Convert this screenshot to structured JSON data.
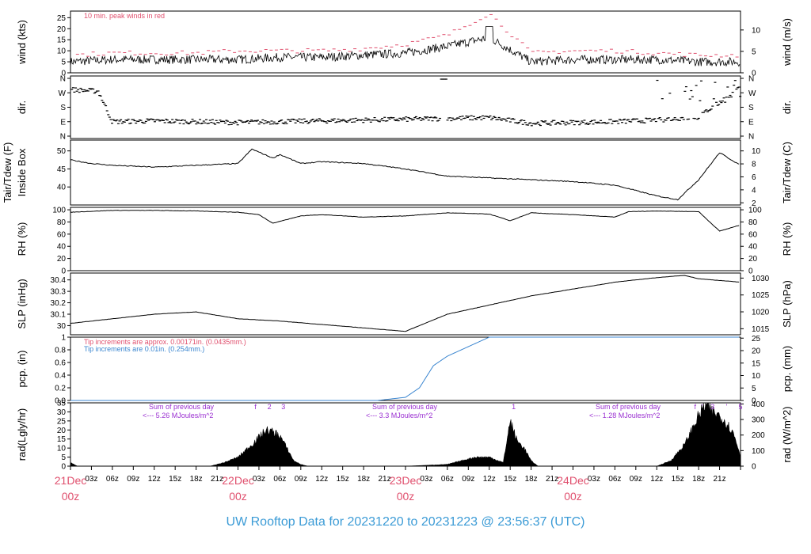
{
  "title": "UW Rooftop Data for 20231220  to  20231223 @ 23:56:37  (UTC)",
  "colors": {
    "red": "#e0506e",
    "blue": "#3b86d0",
    "purple": "#9a2fd1",
    "title": "#3b9bd6"
  },
  "x_axis": {
    "hour_ticks": [
      "03z",
      "06z",
      "09z",
      "12z",
      "15z",
      "18z",
      "21z"
    ],
    "day_labels": [
      {
        "date": "21Dec",
        "hour": "00z"
      },
      {
        "date": "22Dec",
        "hour": "00z"
      },
      {
        "date": "23Dec",
        "hour": "00z"
      },
      {
        "date": "24Dec",
        "hour": "00z"
      }
    ]
  },
  "chart_data": [
    {
      "type": "line",
      "panel": "wind",
      "ylabel_left": "wind (kts)",
      "ylabel_right": "wind (m/s)",
      "ylim": [
        0,
        28
      ],
      "yticks": [
        0,
        5,
        10,
        15,
        20,
        25
      ],
      "right_ticks": [
        0,
        5,
        10
      ],
      "annotation": "10 min. peak winds in red",
      "series": [
        {
          "name": "wind",
          "x": [
            0,
            6,
            12,
            18,
            24,
            30,
            36,
            42,
            48,
            54,
            60,
            66,
            72,
            75,
            78,
            84,
            90,
            96
          ],
          "values": [
            5,
            6,
            6,
            6,
            6,
            7,
            7,
            8,
            9,
            12,
            16,
            5,
            6,
            6,
            6,
            6,
            5,
            5
          ]
        },
        {
          "name": "10 min. peak winds",
          "x": [
            0,
            6,
            12,
            18,
            24,
            30,
            36,
            42,
            48,
            54,
            60,
            66,
            72,
            78,
            84,
            90,
            96
          ],
          "values": [
            8,
            9,
            9,
            9,
            10,
            10,
            10,
            11,
            13,
            17,
            27,
            9,
            10,
            10,
            9,
            8,
            8
          ]
        }
      ]
    },
    {
      "type": "scatter",
      "panel": "direction",
      "ylabel_left": "dir.",
      "ylabel_right": "dir.",
      "tick_labels": [
        "N",
        "E",
        "S",
        "W",
        "N"
      ],
      "series": [
        {
          "name": "dir",
          "x": [
            0,
            4,
            6,
            12,
            18,
            24,
            30,
            36,
            42,
            48,
            54,
            60,
            66,
            72,
            78,
            84,
            90,
            96
          ],
          "values": [
            290,
            280,
            90,
            95,
            90,
            85,
            90,
            95,
            100,
            105,
            110,
            115,
            80,
            85,
            90,
            100,
            120,
            300
          ]
        }
      ]
    },
    {
      "type": "line",
      "panel": "temperature",
      "ylabel_left": "Tair/Tdew (F)",
      "ylabel_left2": "Inside Box",
      "ylabel_right": "Tair/Tdew (C)",
      "ylim": [
        35,
        53
      ],
      "yticks": [
        40,
        45,
        50
      ],
      "right_ticks": [
        2,
        4,
        6,
        8,
        10
      ],
      "series": [
        {
          "name": "Tair",
          "x": [
            0,
            3,
            6,
            12,
            18,
            24,
            26,
            29,
            30,
            33,
            36,
            42,
            48,
            54,
            60,
            66,
            72,
            78,
            84,
            87,
            90,
            93,
            96
          ],
          "values": [
            47.5,
            46.5,
            46,
            45.5,
            46,
            46.5,
            50.5,
            48,
            49,
            46.5,
            47,
            46.5,
            45,
            43,
            42.5,
            42,
            41.5,
            40.5,
            37.5,
            36.5,
            42,
            49.5,
            46
          ]
        }
      ]
    },
    {
      "type": "line",
      "panel": "rh",
      "ylabel_left": "RH (%)",
      "ylabel_right": "RH (%)",
      "ylim": [
        0,
        104
      ],
      "yticks": [
        0,
        20,
        40,
        60,
        80,
        100
      ],
      "series": [
        {
          "name": "RH",
          "x": [
            0,
            6,
            12,
            18,
            24,
            27,
            29,
            33,
            36,
            42,
            48,
            54,
            60,
            63,
            66,
            72,
            78,
            80,
            84,
            90,
            93,
            96
          ],
          "values": [
            96,
            99,
            99,
            98,
            96,
            92,
            78,
            90,
            92,
            88,
            90,
            95,
            93,
            82,
            95,
            92,
            88,
            97,
            98,
            97,
            65,
            75
          ]
        }
      ]
    },
    {
      "type": "line",
      "panel": "slp",
      "ylabel_left": "SLP (inHg)",
      "ylabel_right": "SLP (hPa)",
      "ylim": [
        29.92,
        30.46
      ],
      "yticks": [
        30.0,
        30.1,
        30.2,
        30.3,
        30.4
      ],
      "right_ticks": [
        1015,
        1020,
        1025,
        1030
      ],
      "series": [
        {
          "name": "SLP",
          "x": [
            0,
            6,
            12,
            18,
            24,
            30,
            36,
            42,
            48,
            54,
            60,
            66,
            72,
            78,
            84,
            88,
            90,
            96
          ],
          "values": [
            30.02,
            30.06,
            30.1,
            30.12,
            30.06,
            30.04,
            30.01,
            29.98,
            29.95,
            30.1,
            30.18,
            30.26,
            30.32,
            30.38,
            30.42,
            30.44,
            30.41,
            30.38
          ]
        }
      ]
    },
    {
      "type": "line",
      "panel": "precip",
      "ylabel_left": "pcp. (in)",
      "ylabel_right": "pcp. (mm)",
      "ylim": [
        0,
        1.0
      ],
      "yticks": [
        0.0,
        0.2,
        0.4,
        0.6,
        0.8,
        1.0
      ],
      "right_ticks": [
        0,
        5,
        10,
        15,
        20,
        25
      ],
      "annotations": [
        "Tip increments are approx. 0.00171in. (0.0435mm.)",
        "Tip increments are 0.01in. (0.254mm.)"
      ],
      "series": [
        {
          "name": "pcp",
          "x": [
            0,
            44,
            48,
            50,
            52,
            54,
            56,
            58,
            60,
            62,
            96
          ],
          "values": [
            0,
            0,
            0.05,
            0.2,
            0.55,
            0.7,
            0.8,
            0.9,
            1.0,
            1.0,
            1.0
          ]
        }
      ]
    },
    {
      "type": "area",
      "panel": "radiation",
      "ylabel_left": "rad(Lgly/hr)",
      "ylabel_right": "rad (W/m^2)",
      "ylim": [
        0,
        35
      ],
      "yticks": [
        0,
        5,
        10,
        15,
        20,
        25,
        30,
        35
      ],
      "right_ticks": [
        0,
        100,
        200,
        300,
        400
      ],
      "day_sums": [
        {
          "label": "Sum of previous day",
          "value": "<--- 5.26 MJoules/m^2",
          "x": 11
        },
        {
          "label": "Sum of previous day",
          "value": "<--- 3.3 MJoules/m^2",
          "x": 43
        },
        {
          "label": "Sum of previous day",
          "value": "<--- 1.28 MJoules/m^2",
          "x": 75
        }
      ],
      "markers": [
        {
          "text": "f",
          "x": 26.5
        },
        {
          "text": "2",
          "x": 28.5
        },
        {
          "text": "3",
          "x": 30.5
        },
        {
          "text": "1",
          "x": 63.5
        },
        {
          "text": "f",
          "x": 89.5
        },
        {
          "text": "'",
          "x": 90.5
        },
        {
          "text": "3",
          "x": 92
        },
        {
          "text": "'",
          "x": 94
        },
        {
          "text": "5",
          "x": 96
        }
      ],
      "series": [
        {
          "name": "rad",
          "x": [
            0,
            1,
            2,
            20,
            22,
            24,
            26,
            27,
            28,
            29,
            30,
            31,
            32,
            33,
            34,
            44,
            48,
            54,
            56,
            58,
            60,
            62,
            63,
            64,
            65,
            66,
            67,
            68,
            84,
            86,
            88,
            89,
            90,
            91,
            92,
            93,
            94,
            95,
            96
          ],
          "values": [
            2,
            0,
            0,
            0,
            2,
            5,
            12,
            16,
            20,
            19,
            17,
            10,
            3,
            1,
            0,
            0,
            0,
            1,
            3,
            5,
            5,
            2,
            25,
            14,
            10,
            3,
            0,
            0,
            0,
            3,
            12,
            20,
            28,
            34,
            30,
            28,
            24,
            18,
            6
          ]
        }
      ]
    }
  ]
}
